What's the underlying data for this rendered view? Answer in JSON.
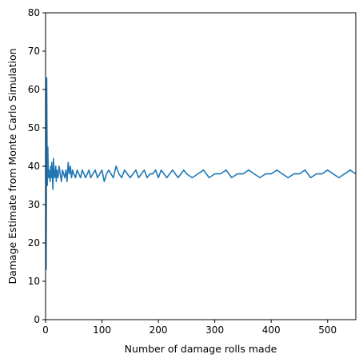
{
  "chart_data": {
    "type": "line",
    "title": "",
    "xlabel": "Number of damage rolls made",
    "ylabel": "Damage Estimate from Monte Carlo Simulation",
    "xlim": [
      0,
      550
    ],
    "ylim": [
      0,
      80
    ],
    "xticks": [
      0,
      100,
      200,
      300,
      400,
      500
    ],
    "yticks": [
      0,
      10,
      20,
      30,
      40,
      50,
      60,
      70,
      80
    ],
    "grid": false,
    "legend": "none",
    "series": [
      {
        "color": "#1f77b4",
        "x": [
          1,
          2,
          3,
          4,
          5,
          6,
          7,
          8,
          9,
          10,
          11,
          12,
          13,
          14,
          15,
          16,
          17,
          18,
          19,
          20,
          22,
          24,
          26,
          28,
          30,
          32,
          34,
          36,
          38,
          40,
          42,
          44,
          46,
          48,
          50,
          53,
          56,
          59,
          62,
          65,
          68,
          71,
          74,
          77,
          80,
          84,
          88,
          92,
          96,
          100,
          104,
          108,
          112,
          116,
          120,
          125,
          130,
          135,
          140,
          145,
          150,
          155,
          160,
          165,
          170,
          175,
          180,
          185,
          190,
          195,
          200,
          205,
          210,
          215,
          220,
          225,
          230,
          235,
          240,
          245,
          250,
          260,
          270,
          280,
          290,
          300,
          310,
          320,
          330,
          340,
          350,
          360,
          370,
          380,
          390,
          400,
          410,
          420,
          430,
          440,
          450,
          460,
          470,
          480,
          490,
          500,
          510,
          520,
          530,
          540,
          550
        ],
        "y": [
          13,
          63,
          35,
          45,
          37,
          39,
          38,
          36,
          40,
          37,
          41,
          38,
          34,
          42,
          39,
          37,
          38,
          40,
          36,
          39,
          37,
          40,
          38,
          36,
          39,
          38,
          37,
          39,
          36,
          41,
          38,
          40,
          37,
          39,
          38,
          37,
          39,
          38,
          37,
          39,
          38,
          37,
          38,
          39,
          37,
          38,
          39,
          37,
          38,
          39,
          36,
          38,
          39,
          38,
          37,
          40,
          38,
          37,
          39,
          38,
          37,
          38,
          39,
          37,
          38,
          39,
          37,
          38,
          38,
          39,
          37,
          39,
          38,
          37,
          38,
          39,
          38,
          37,
          38,
          39,
          38,
          37,
          38,
          39,
          37,
          38,
          38,
          39,
          37,
          38,
          38,
          39,
          38,
          37,
          38,
          38,
          39,
          38,
          37,
          38,
          38,
          39,
          37,
          38,
          38,
          39,
          38,
          37,
          38,
          39,
          38
        ]
      }
    ]
  }
}
